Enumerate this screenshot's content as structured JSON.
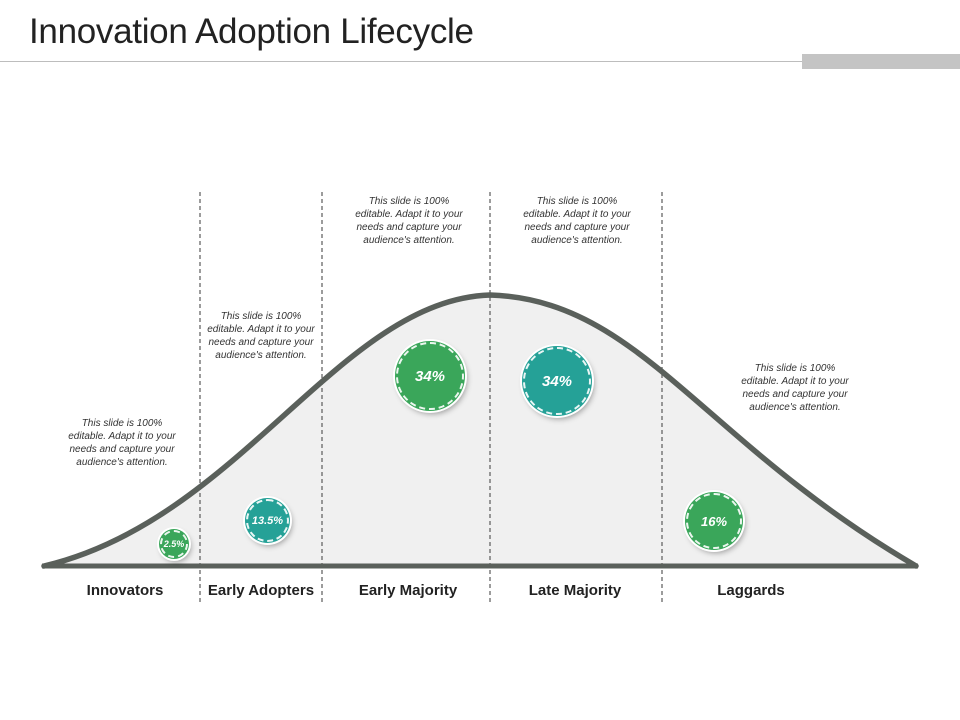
{
  "title": "Innovation Adoption Lifecycle",
  "colors": {
    "green": "#3aa65a",
    "teal": "#25a197",
    "curve": "#5a605b",
    "fill": "#f0f0f0",
    "divider": "#666666"
  },
  "note_text": "This slide is 100% editable. Adapt it to your needs and capture your audience's attention.",
  "segments": [
    {
      "label": "Innovators",
      "percent": 2.5,
      "percent_label": "2.5%",
      "color": "green"
    },
    {
      "label": "Early Adopters",
      "percent": 13.5,
      "percent_label": "13.5%",
      "color": "teal"
    },
    {
      "label": "Early Majority",
      "percent": 34,
      "percent_label": "34%",
      "color": "green"
    },
    {
      "label": "Late Majority",
      "percent": 34,
      "percent_label": "34%",
      "color": "teal"
    },
    {
      "label": "Laggards",
      "percent": 16,
      "percent_label": "16%",
      "color": "green"
    }
  ]
}
